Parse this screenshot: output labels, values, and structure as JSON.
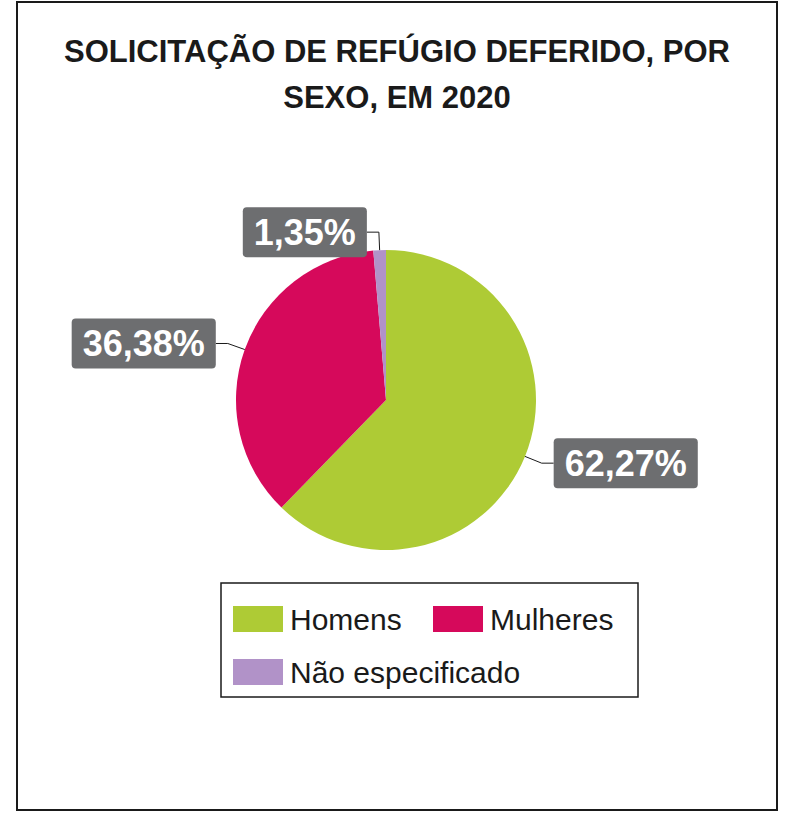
{
  "chart_data": {
    "type": "pie",
    "title": "SOLICITAÇÃO DE REFÚGIO DEFERIDO, POR SEXO, EM 2020",
    "categories": [
      "Homens",
      "Mulheres",
      "Não especificado"
    ],
    "values": [
      62.27,
      36.38,
      1.35
    ],
    "value_labels": [
      "62,27%",
      "36,38%",
      "1,35%"
    ],
    "colors": [
      "#aecb35",
      "#d6095b",
      "#b192c8"
    ],
    "data_labels": true,
    "legend": "bottom"
  }
}
